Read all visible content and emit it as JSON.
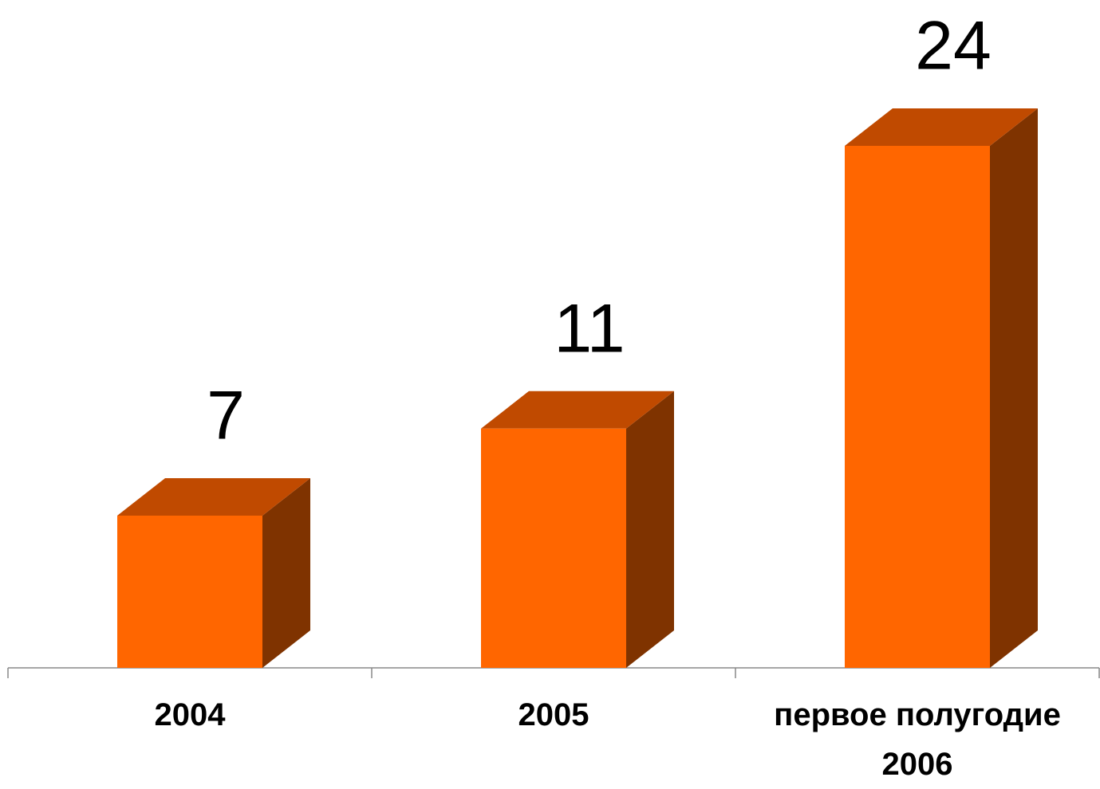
{
  "chart_data": {
    "type": "bar3d",
    "categories": [
      "2004",
      "2005",
      "первое полугодие 2006"
    ],
    "values": [
      7,
      11,
      24
    ],
    "ylim": [
      0,
      24
    ],
    "colors": {
      "front": "#ff6600",
      "top": "#c04a00",
      "side": "#7f3300"
    }
  }
}
